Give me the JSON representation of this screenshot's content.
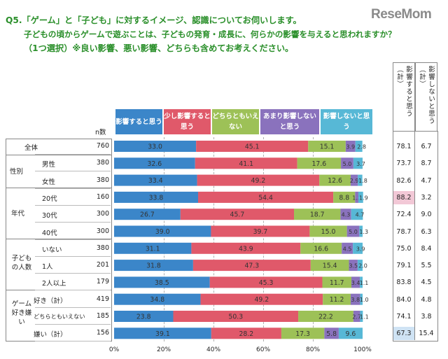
{
  "logo": "ReseMom",
  "question": {
    "line1": "Q5.「ゲーム」と「子ども」に対するイメージ、認識についてお伺いします。",
    "line2": "子どもの頃からゲームで遊ぶことは、子どもの発育・成長に、何らかの影響を与えると思われますか？",
    "line3": "（1つ選択）※良い影響、悪い影響、どちらも含めてお考えください。"
  },
  "header": {
    "n_label": "n数",
    "sum1": "影響すると思う（計）",
    "sum2": "影響しないと思う（計）"
  },
  "groups": {
    "gender": "性別",
    "age": "年代",
    "kids_l1": "子ども",
    "kids_l2": "の人数",
    "game_l1": "ゲーム",
    "game_l2": "好き嫌",
    "game_l3": "い"
  },
  "colors": [
    "#3b86c9",
    "#e0596a",
    "#9dc157",
    "#8a72bd",
    "#57b8d6"
  ],
  "chart_data": {
    "type": "bar",
    "orientation": "horizontal",
    "stacked": "100%",
    "xlim": [
      0,
      100
    ],
    "x_ticks": [
      "0%",
      "20%",
      "40%",
      "60%",
      "80%",
      "100%"
    ],
    "series": [
      {
        "name": "影響すると思う",
        "values": [
          33.0,
          32.6,
          33.4,
          33.8,
          26.7,
          39.0,
          31.1,
          31.8,
          38.5,
          34.8,
          23.8,
          39.1
        ]
      },
      {
        "name": "少し影響すると思う",
        "values": [
          45.1,
          41.1,
          49.2,
          54.4,
          45.7,
          39.7,
          43.9,
          47.3,
          45.3,
          49.2,
          50.3,
          28.2
        ]
      },
      {
        "name": "どちらともいえない",
        "values": [
          15.1,
          17.6,
          12.6,
          8.8,
          18.7,
          15.0,
          16.6,
          15.4,
          11.7,
          11.2,
          22.2,
          17.3
        ]
      },
      {
        "name": "あまり影響しないと思う",
        "values": [
          3.9,
          5.0,
          2.9,
          1.3,
          4.3,
          5.0,
          4.5,
          3.5,
          3.4,
          3.8,
          2.7,
          5.8
        ]
      },
      {
        "name": "影響しないと思う",
        "values": [
          2.8,
          3.7,
          1.8,
          1.9,
          4.7,
          1.3,
          3.9,
          2.0,
          1.1,
          1.0,
          1.1,
          9.6
        ]
      }
    ],
    "rows": [
      {
        "label": "全体",
        "n": "760",
        "sum1": "78.1",
        "sum2": "6.7"
      },
      {
        "label": "男性",
        "n": "380",
        "sum1": "73.7",
        "sum2": "8.7"
      },
      {
        "label": "女性",
        "n": "380",
        "sum1": "82.6",
        "sum2": "4.7"
      },
      {
        "label": "20代",
        "n": "160",
        "sum1": "88.2",
        "sum2": "3.2"
      },
      {
        "label": "30代",
        "n": "300",
        "sum1": "72.4",
        "sum2": "9.0"
      },
      {
        "label": "40代",
        "n": "300",
        "sum1": "78.7",
        "sum2": "6.3"
      },
      {
        "label": "いない",
        "n": "380",
        "sum1": "75.0",
        "sum2": "8.4"
      },
      {
        "label": "1人",
        "n": "201",
        "sum1": "79.1",
        "sum2": "5.5"
      },
      {
        "label": "2人以上",
        "n": "179",
        "sum1": "83.8",
        "sum2": "4.5"
      },
      {
        "label": "好き（計）",
        "n": "419",
        "sum1": "84.0",
        "sum2": "4.8"
      },
      {
        "label": "どちらともいえない",
        "n": "185",
        "sum1": "74.1",
        "sum2": "3.8"
      },
      {
        "label": "嫌い（計）",
        "n": "156",
        "sum1": "67.3",
        "sum2": "15.4"
      }
    ]
  }
}
